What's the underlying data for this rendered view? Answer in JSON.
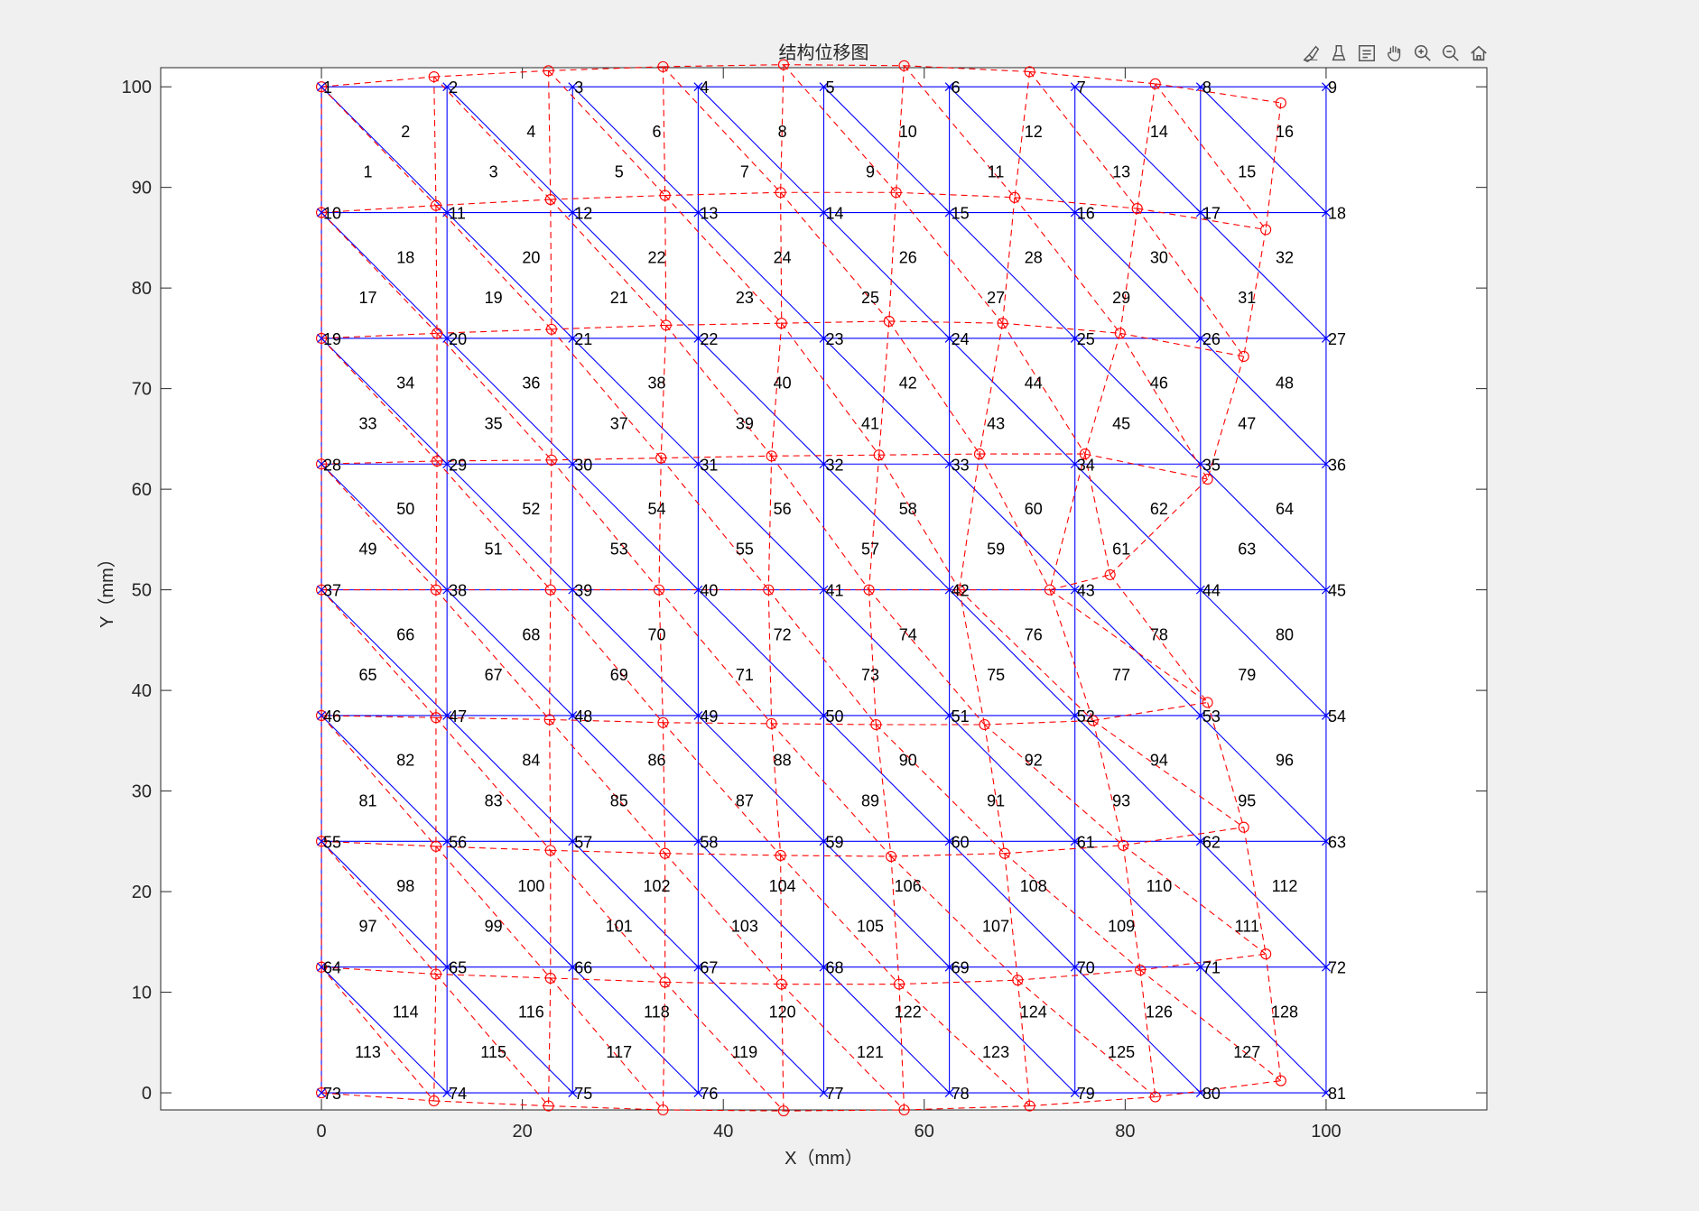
{
  "toolbar": {
    "icons": [
      "brush-icon",
      "data-tip-icon",
      "legend-icon",
      "pan-hand-icon",
      "zoom-in-icon",
      "zoom-out-icon",
      "home-icon"
    ]
  },
  "colors": {
    "background": "#f0f0f0",
    "axes_bg": "#ffffff",
    "original_mesh": "#0000ff",
    "deformed_mesh": "#ff0000",
    "element_label": "#000000",
    "node_label": "#0000ff"
  },
  "chart_data": {
    "type": "mesh",
    "title": "结构位移图",
    "xlabel": "X（mm）",
    "ylabel": "Y（mm）",
    "xlim": [
      -16,
      116
    ],
    "ylim": [
      -1.7,
      101.9
    ],
    "xticks": [
      0,
      20,
      40,
      60,
      80,
      100
    ],
    "yticks": [
      0,
      10,
      20,
      30,
      40,
      50,
      60,
      70,
      80,
      90,
      100
    ],
    "xtick_labels": [
      "0",
      "20",
      "40",
      "60",
      "80",
      "100"
    ],
    "ytick_labels": [
      "0",
      "10",
      "20",
      "30",
      "40",
      "50",
      "60",
      "70",
      "80",
      "90",
      "100"
    ],
    "grid": false,
    "nodes_per_side": 9,
    "node_spacing": 12.5,
    "node_labels": [
      "1",
      "2",
      "3",
      "4",
      "5",
      "6",
      "7",
      "8",
      "9",
      "10",
      "11",
      "12",
      "13",
      "14",
      "15",
      "16",
      "17",
      "18",
      "19",
      "20",
      "21",
      "22",
      "23",
      "24",
      "25",
      "26",
      "27",
      "28",
      "29",
      "30",
      "31",
      "32",
      "33",
      "34",
      "35",
      "36",
      "37",
      "38",
      "39",
      "40",
      "41",
      "42",
      "43",
      "44",
      "45",
      "46",
      "47",
      "48",
      "49",
      "50",
      "51",
      "52",
      "53",
      "54",
      "55",
      "56",
      "57",
      "58",
      "59",
      "60",
      "61",
      "62",
      "63",
      "64",
      "65",
      "66",
      "67",
      "68",
      "69",
      "70",
      "71",
      "72",
      "73",
      "74",
      "75",
      "76",
      "77",
      "78",
      "79",
      "80",
      "81"
    ],
    "element_labels": [
      "1",
      "2",
      "3",
      "4",
      "5",
      "6",
      "7",
      "8",
      "9",
      "10",
      "11",
      "12",
      "13",
      "14",
      "15",
      "16",
      "17",
      "18",
      "19",
      "20",
      "21",
      "22",
      "23",
      "24",
      "25",
      "26",
      "27",
      "28",
      "29",
      "30",
      "31",
      "32",
      "33",
      "34",
      "35",
      "36",
      "37",
      "38",
      "39",
      "40",
      "41",
      "42",
      "43",
      "44",
      "45",
      "46",
      "47",
      "48",
      "49",
      "50",
      "51",
      "52",
      "53",
      "54",
      "55",
      "56",
      "57",
      "58",
      "59",
      "60",
      "61",
      "62",
      "63",
      "64",
      "65",
      "66",
      "67",
      "68",
      "69",
      "70",
      "71",
      "72",
      "73",
      "74",
      "75",
      "76",
      "77",
      "78",
      "79",
      "80",
      "81",
      "82",
      "83",
      "84",
      "85",
      "86",
      "87",
      "88",
      "89",
      "90",
      "91",
      "92",
      "93",
      "94",
      "95",
      "96",
      "97",
      "98",
      "99",
      "100",
      "101",
      "102",
      "103",
      "104",
      "105",
      "106",
      "107",
      "108",
      "109",
      "110",
      "111",
      "112",
      "113",
      "114",
      "115",
      "116",
      "117",
      "118",
      "119",
      "120",
      "121",
      "122",
      "123",
      "124",
      "125",
      "126",
      "127",
      "128"
    ],
    "deformed_rows": [
      [
        [
          0,
          100
        ],
        [
          11.2,
          101
        ],
        [
          22.6,
          101.6
        ],
        [
          34,
          102
        ],
        [
          46,
          102.2
        ],
        [
          58,
          102.1
        ],
        [
          70.5,
          101.5
        ],
        [
          83,
          100.3
        ],
        [
          95.5,
          98.4
        ]
      ],
      [
        [
          0,
          87.5
        ],
        [
          11.4,
          88.2
        ],
        [
          22.8,
          88.8
        ],
        [
          34.2,
          89.2
        ],
        [
          45.7,
          89.5
        ],
        [
          57.2,
          89.5
        ],
        [
          69,
          89
        ],
        [
          81.2,
          87.9
        ],
        [
          94,
          85.8
        ]
      ],
      [
        [
          0,
          75
        ],
        [
          11.5,
          75.5
        ],
        [
          22.9,
          75.9
        ],
        [
          34.3,
          76.3
        ],
        [
          45.8,
          76.5
        ],
        [
          56.5,
          76.7
        ],
        [
          67.8,
          76.5
        ],
        [
          79.5,
          75.5
        ],
        [
          91.8,
          73.2
        ]
      ],
      [
        [
          0,
          62.5
        ],
        [
          11.5,
          62.8
        ],
        [
          22.9,
          62.9
        ],
        [
          33.8,
          63.1
        ],
        [
          44.8,
          63.3
        ],
        [
          55.5,
          63.4
        ],
        [
          65.5,
          63.5
        ],
        [
          76,
          63.5
        ],
        [
          88.2,
          61
        ]
      ],
      [
        [
          0,
          50
        ],
        [
          11.4,
          50
        ],
        [
          22.8,
          50
        ],
        [
          33.6,
          50
        ],
        [
          44.5,
          50
        ],
        [
          54.5,
          50
        ],
        [
          63.5,
          50
        ],
        [
          72.5,
          50
        ],
        [
          78.5,
          51.5
        ]
      ],
      [
        [
          0,
          37.5
        ],
        [
          11.4,
          37.3
        ],
        [
          22.7,
          37.1
        ],
        [
          34,
          36.8
        ],
        [
          44.8,
          36.7
        ],
        [
          55.2,
          36.6
        ],
        [
          66,
          36.6
        ],
        [
          76.8,
          37
        ],
        [
          88.2,
          38.8
        ]
      ],
      [
        [
          0,
          25
        ],
        [
          11.4,
          24.5
        ],
        [
          22.8,
          24.1
        ],
        [
          34.2,
          23.8
        ],
        [
          45.7,
          23.6
        ],
        [
          56.7,
          23.5
        ],
        [
          68,
          23.8
        ],
        [
          79.8,
          24.6
        ],
        [
          91.8,
          26.4
        ]
      ],
      [
        [
          0,
          12.5
        ],
        [
          11.4,
          11.8
        ],
        [
          22.8,
          11.4
        ],
        [
          34.2,
          11
        ],
        [
          45.8,
          10.8
        ],
        [
          57.5,
          10.8
        ],
        [
          69.3,
          11.2
        ],
        [
          81.5,
          12.2
        ],
        [
          94,
          13.8
        ]
      ],
      [
        [
          0,
          0
        ],
        [
          11.2,
          -0.8
        ],
        [
          22.6,
          -1.3
        ],
        [
          34,
          -1.7
        ],
        [
          46,
          -1.8
        ],
        [
          58,
          -1.7
        ],
        [
          70.5,
          -1.3
        ],
        [
          83,
          -0.4
        ],
        [
          95.5,
          1.2
        ]
      ]
    ]
  }
}
